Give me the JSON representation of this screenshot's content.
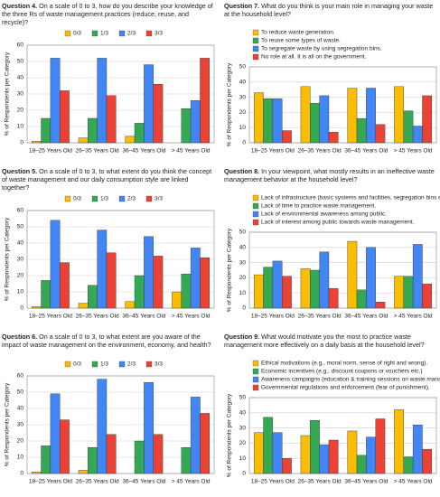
{
  "chart_data": [
    {
      "type": "bar",
      "title": "Question 4.",
      "subtitle": "On a scale of 0 to 3, how do you describe your knowledge of the three Rs of waste management practices (reduce, reuse, and recycle)?",
      "y_label": "% of Respondents per Category",
      "categories": [
        "18–25 Years Old",
        "26–35 Years Old",
        "36–45 Years Old",
        "> 45 Years Old"
      ],
      "series": [
        {
          "name": "0/3",
          "color": "#fbbc04",
          "values": [
            1,
            3,
            4,
            0
          ]
        },
        {
          "name": "1/3",
          "color": "#34a853",
          "values": [
            15,
            15,
            12,
            21
          ]
        },
        {
          "name": "2/3",
          "color": "#4285f4",
          "values": [
            52,
            52,
            48,
            26
          ]
        },
        {
          "name": "3/3",
          "color": "#ea4335",
          "values": [
            32,
            29,
            36,
            52
          ]
        }
      ],
      "ylim": [
        0,
        60
      ],
      "yticks": [
        0,
        10,
        20,
        30,
        40,
        50,
        60
      ],
      "grid": true,
      "legend": "top"
    },
    {
      "type": "bar",
      "title": "Question 7.",
      "subtitle": "What do you think is your main role in managing your waste at the household level?",
      "y_label": "% of Respondents per Category",
      "categories": [
        "18–25 Years Old",
        "26–35 Years Old",
        "36–45 Years Old",
        "> 45 Years Old"
      ],
      "series": [
        {
          "name": "To reduce waste generation.",
          "color": "#fbbc04",
          "values": [
            33,
            37,
            36,
            37
          ]
        },
        {
          "name": "To reuse some types of waste.",
          "color": "#34a853",
          "values": [
            29,
            26,
            16,
            21
          ]
        },
        {
          "name": "To segregate waste by using segregation bins.",
          "color": "#4285f4",
          "values": [
            29,
            31,
            36,
            11
          ]
        },
        {
          "name": "No role at all. It is all on the government.",
          "color": "#ea4335",
          "values": [
            8,
            7,
            12,
            31
          ]
        }
      ],
      "ylim": [
        0,
        50
      ],
      "yticks": [
        0,
        10,
        20,
        30,
        40,
        50
      ],
      "grid": true,
      "legend": "top-left"
    },
    {
      "type": "bar",
      "title": "Question 5.",
      "subtitle": "On a scale of 0 to 3, to what extent do you think the concept of waste management and our daily consumption style are linked together?",
      "y_label": "% of Respondents per Category",
      "categories": [
        "18–25 Years Old",
        "26–35 Years Old",
        "36–45 Years Old",
        "> 45 Years Old"
      ],
      "series": [
        {
          "name": "0/3",
          "color": "#fbbc04",
          "values": [
            1,
            3,
            4,
            10
          ]
        },
        {
          "name": "1/3",
          "color": "#34a853",
          "values": [
            17,
            14,
            20,
            21
          ]
        },
        {
          "name": "2/3",
          "color": "#4285f4",
          "values": [
            54,
            48,
            44,
            37
          ]
        },
        {
          "name": "3/3",
          "color": "#ea4335",
          "values": [
            28,
            34,
            32,
            31
          ]
        }
      ],
      "ylim": [
        0,
        60
      ],
      "yticks": [
        0,
        10,
        20,
        30,
        40,
        50,
        60
      ],
      "grid": true,
      "legend": "top"
    },
    {
      "type": "bar",
      "title": "Question 8.",
      "subtitle": "In your viewpoint, what mostly results in an ineffective waste management behavior at the household level?",
      "y_label": "% of Respondents per Category",
      "categories": [
        "18–25 Years Old",
        "26–35 Years Old",
        "36–45 Years Old",
        "> 45 Years Old"
      ],
      "series": [
        {
          "name": "Lack of infrastructure (basic systems and facilities, segregation bins etc.).",
          "color": "#fbbc04",
          "values": [
            22,
            26,
            44,
            21
          ]
        },
        {
          "name": "Lack of time to practice waste management.",
          "color": "#34a853",
          "values": [
            27,
            25,
            12,
            21
          ]
        },
        {
          "name": "Lack of environmental awareness among public.",
          "color": "#4285f4",
          "values": [
            31,
            37,
            40,
            42
          ]
        },
        {
          "name": "Lack of interest among public towards waste management.",
          "color": "#ea4335",
          "values": [
            21,
            13,
            4,
            16
          ]
        }
      ],
      "ylim": [
        0,
        50
      ],
      "yticks": [
        0,
        10,
        20,
        30,
        40,
        50
      ],
      "grid": true,
      "legend": "top-left"
    },
    {
      "type": "bar",
      "title": "Question 6.",
      "subtitle": "On a scale of 0 to 3, to what extent are you aware of the impact of waste management on the environment, economy, and health?",
      "y_label": "% of Respondents per Category",
      "categories": [
        "18–25 Years Old",
        "26–35 Years Old",
        "36–45 Years Old",
        "> 45 Years Old"
      ],
      "series": [
        {
          "name": "0/3",
          "color": "#fbbc04",
          "values": [
            1,
            2,
            0,
            0
          ]
        },
        {
          "name": "1/3",
          "color": "#34a853",
          "values": [
            17,
            16,
            20,
            16
          ]
        },
        {
          "name": "2/3",
          "color": "#4285f4",
          "values": [
            49,
            58,
            56,
            47
          ]
        },
        {
          "name": "3/3",
          "color": "#ea4335",
          "values": [
            33,
            24,
            24,
            37
          ]
        }
      ],
      "ylim": [
        0,
        60
      ],
      "yticks": [
        0,
        10,
        20,
        30,
        40,
        50,
        60
      ],
      "grid": true,
      "legend": "top"
    },
    {
      "type": "bar",
      "title": "Question 9.",
      "subtitle": "What would motivate you the most to practice waste management more effectively on a daily basis at the household level?",
      "y_label": "% of Respondents per Category",
      "categories": [
        "18–25 Years Old",
        "26–35 Years Old",
        "36–45 Years Old",
        "> 45 Years Old"
      ],
      "series": [
        {
          "name": "Ethical motivations (e.g., moral norm, sense of right and wrong).",
          "color": "#fbbc04",
          "values": [
            27,
            25,
            28,
            42
          ]
        },
        {
          "name": "Economic incentives (e.g., discount coupons or vouchers etc.)",
          "color": "#34a853",
          "values": [
            37,
            35,
            12,
            11
          ]
        },
        {
          "name": "Awareness campaigns (education & training sessions on waste management).",
          "color": "#4285f4",
          "values": [
            27,
            19,
            24,
            32
          ]
        },
        {
          "name": "Governmental regulations and enforcement (fear of punishment).",
          "color": "#ea4335",
          "values": [
            10,
            22,
            36,
            16
          ]
        }
      ],
      "ylim": [
        0,
        50
      ],
      "yticks": [
        0,
        10,
        20,
        30,
        40,
        50
      ],
      "grid": true,
      "legend": "top-left"
    }
  ]
}
